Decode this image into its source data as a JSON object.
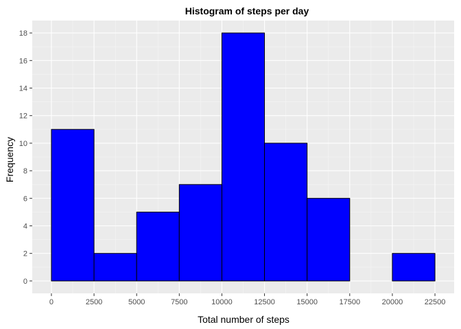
{
  "chart_data": {
    "type": "bar",
    "title": "Histogram of steps per day",
    "xlabel": "Total number of steps",
    "ylabel": "Frequency",
    "bin_width": 2500,
    "bins": [
      {
        "start": 0,
        "end": 2500,
        "count": 11
      },
      {
        "start": 2500,
        "end": 5000,
        "count": 2
      },
      {
        "start": 5000,
        "end": 7500,
        "count": 5
      },
      {
        "start": 7500,
        "end": 10000,
        "count": 7
      },
      {
        "start": 10000,
        "end": 12500,
        "count": 18
      },
      {
        "start": 12500,
        "end": 15000,
        "count": 10
      },
      {
        "start": 15000,
        "end": 17500,
        "count": 6
      },
      {
        "start": 17500,
        "end": 20000,
        "count": 0
      },
      {
        "start": 20000,
        "end": 22500,
        "count": 2
      }
    ],
    "xlim": [
      -1125,
      23625
    ],
    "ylim": [
      -0.9,
      18.9
    ],
    "xticks": [
      0,
      2500,
      5000,
      7500,
      10000,
      12500,
      15000,
      17500,
      20000,
      22500
    ],
    "yticks": [
      0,
      2,
      4,
      6,
      8,
      10,
      12,
      14,
      16,
      18
    ],
    "grid": true,
    "colors": {
      "bar_fill": "#0000ff",
      "bar_stroke": "#000000",
      "panel": "#ebebeb",
      "grid_major": "#ffffff",
      "grid_minor": "#f5f5f5",
      "tick_text": "#4d4d4d"
    }
  }
}
